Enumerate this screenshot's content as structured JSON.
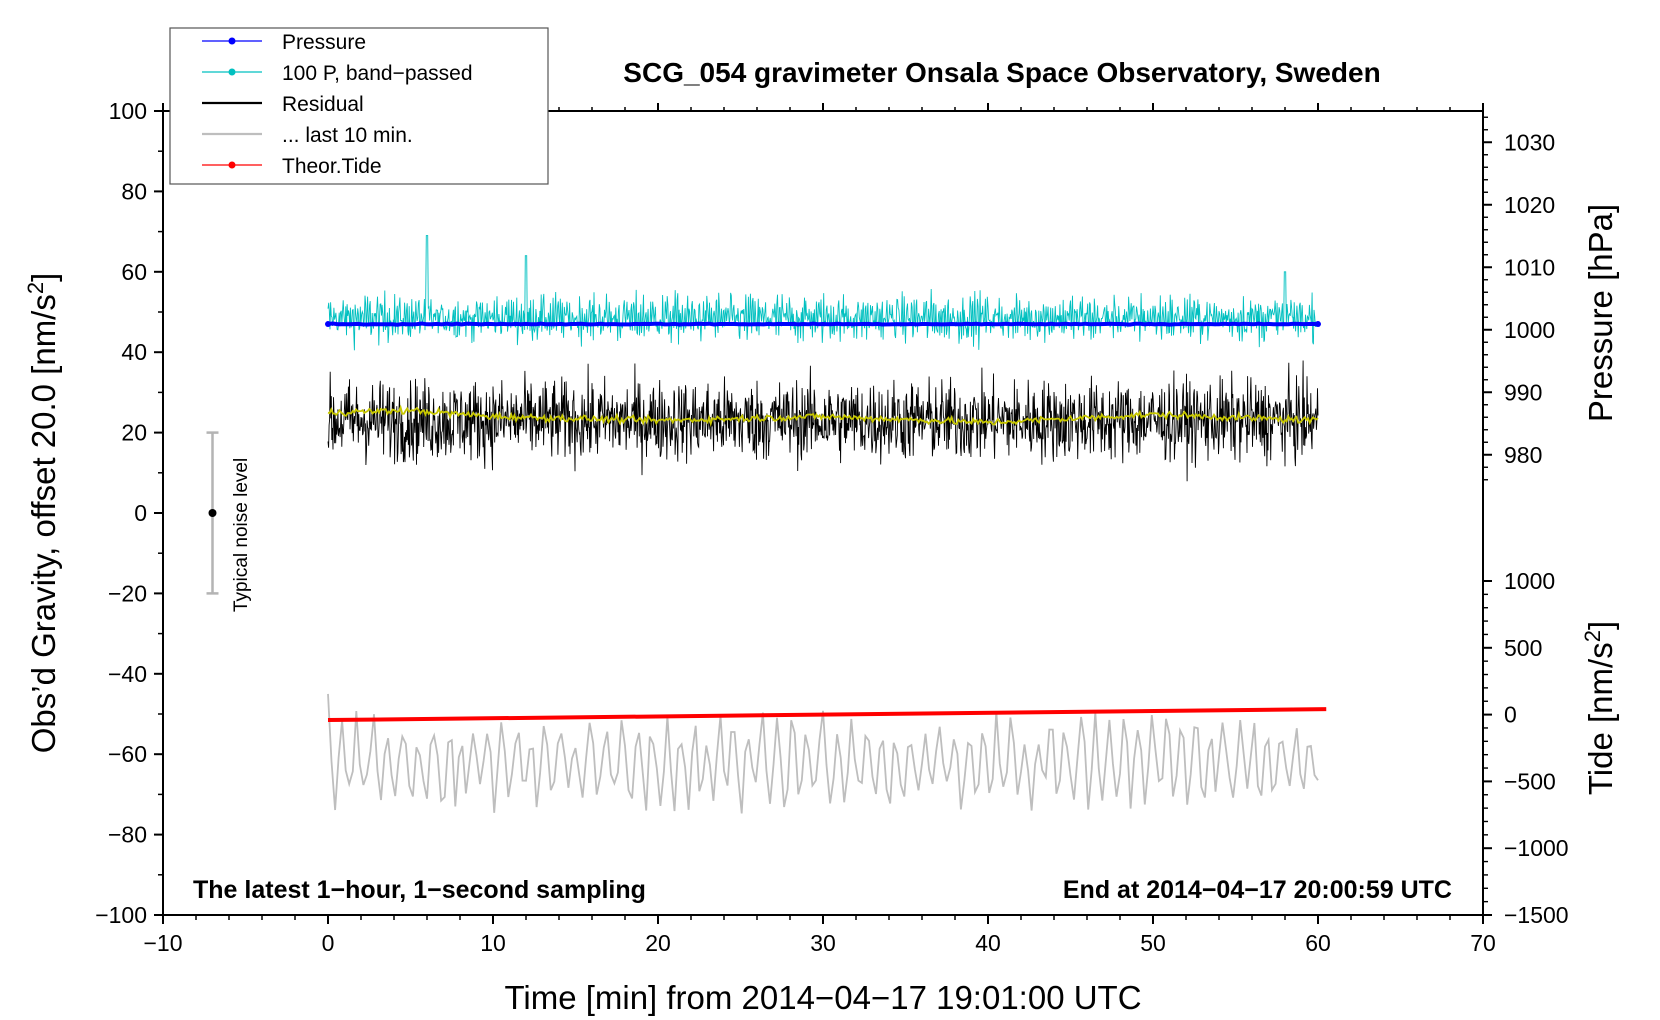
{
  "chart_data": {
    "type": "line",
    "title": "SCG_054 gravimeter Onsala Space Observatory, Sweden",
    "xlabel": "Time [min] from 2014−04−17 19:01:00 UTC",
    "ylabel": "Obs’d Gravity, offset 20.0 [nm/s",
    "ylabel_sup": "2",
    "ylabel_end": "]",
    "y2label_pressure": "Pressure [hPa]",
    "y2label_tide": "Tide [nm/s",
    "y2label_tide_sup": "2",
    "y2label_tide_end": "]",
    "xlim": [
      -10,
      70
    ],
    "ylim": [
      -100,
      100
    ],
    "x_ticks": [
      "−10",
      "0",
      "10",
      "20",
      "30",
      "40",
      "50",
      "60",
      "70"
    ],
    "y_ticks": [
      "100",
      "80",
      "60",
      "40",
      "20",
      "0",
      "−20",
      "−40",
      "−60",
      "−80",
      "−100"
    ],
    "pressure_ticks": [
      "1030",
      "1020",
      "1010",
      "1000",
      "990",
      "980"
    ],
    "tide_ticks": [
      "1000",
      "500",
      "0",
      "−500",
      "−1000",
      "−1500"
    ],
    "annotation_left": "The latest 1−hour, 1−second sampling",
    "annotation_right": "End at 2014−04−17 20:00:59 UTC",
    "noise_label": "Typical noise level",
    "noise_bar": {
      "x": -7,
      "center": 0,
      "low": -20,
      "high": 20
    },
    "legend": [
      {
        "label": "Pressure",
        "color": "#0000ff",
        "marker": true
      },
      {
        "label": "100 P, band−passed",
        "color": "#00c0c0",
        "marker": true
      },
      {
        "label": "Residual",
        "color": "#000000",
        "marker": false
      },
      {
        "label": "... last 10 min.",
        "color": "#bebebe",
        "marker": false
      },
      {
        "label": "Theor.Tide",
        "color": "#ff0000",
        "marker": true
      }
    ],
    "series": [
      {
        "name": "Pressure",
        "color": "#0000ff",
        "x_range": [
          0,
          60
        ],
        "mean": 47,
        "noise": 0.3
      },
      {
        "name": "100 P, band−passed",
        "color": "#00c0c0",
        "x_range": [
          0,
          60
        ],
        "mean": 48.5,
        "amplitude": 6,
        "spikes": [
          [
            6,
            69
          ],
          [
            12,
            64
          ],
          [
            58,
            60
          ]
        ]
      },
      {
        "name": "Residual",
        "color": "#000000",
        "x_range": [
          0,
          60
        ],
        "mean": 23,
        "amplitude": 9,
        "min": 4,
        "max": 44
      },
      {
        "name": "Residual smoothed",
        "color": "#c8c800",
        "x_range": [
          0,
          60
        ],
        "values_at": [
          [
            0,
            25
          ],
          [
            5,
            25.5
          ],
          [
            10,
            24
          ],
          [
            20,
            23
          ],
          [
            30,
            24
          ],
          [
            40,
            22.5
          ],
          [
            50,
            24.5
          ],
          [
            60,
            23
          ]
        ]
      },
      {
        "name": "... last 10 min.",
        "color": "#bebebe",
        "x_range": [
          0,
          60
        ],
        "mean": -62,
        "amplitude": 9,
        "min": -80,
        "max": -44
      },
      {
        "name": "Theor.Tide",
        "color": "#ff0000",
        "x_range": [
          0,
          60.5
        ],
        "values_at": [
          [
            0,
            -51.5
          ],
          [
            60.5,
            -48.8
          ]
        ]
      }
    ],
    "grid": false
  }
}
